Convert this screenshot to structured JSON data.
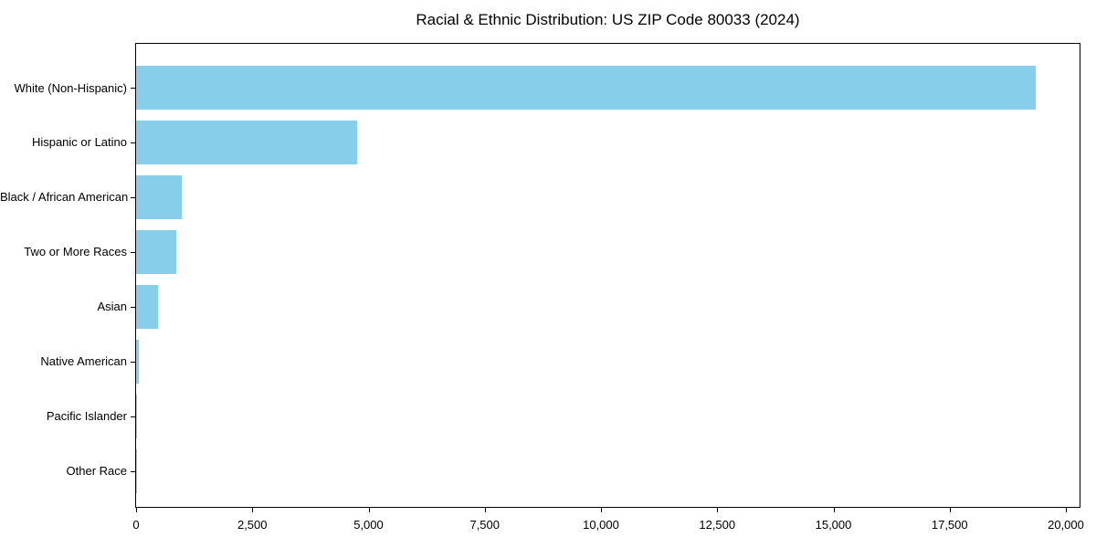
{
  "chart_data": {
    "type": "bar",
    "orientation": "horizontal",
    "title": "Racial & Ethnic Distribution: US ZIP Code 80033 (2024)",
    "categories": [
      "White (Non-Hispanic)",
      "Hispanic or Latino",
      "Black / African American",
      "Two or More Races",
      "Asian",
      "Native American",
      "Pacific Islander",
      "Other Race"
    ],
    "values": [
      19350,
      4760,
      980,
      860,
      470,
      60,
      15,
      5
    ],
    "xlabel": "",
    "ylabel": "",
    "xlim": [
      0,
      20000
    ],
    "xticks": [
      0,
      2500,
      5000,
      7500,
      10000,
      12500,
      15000,
      17500,
      20000
    ],
    "xtick_labels": [
      "0",
      "2,500",
      "5,000",
      "7,500",
      "10,000",
      "12,500",
      "15,000",
      "17,500",
      "20,000"
    ],
    "bar_color": "#87CEEB",
    "axis_color": "#000000",
    "background_color": "#ffffff",
    "grid": false,
    "legend": null
  }
}
